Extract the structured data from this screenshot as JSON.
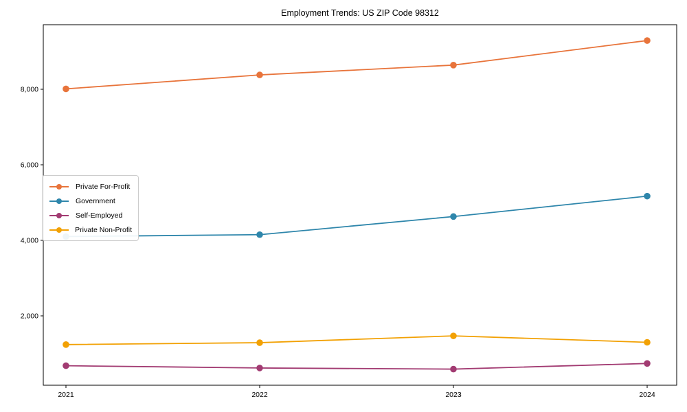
{
  "chart_data": {
    "type": "line",
    "title": "Employment Trends: US ZIP Code 98312",
    "xlabel": "",
    "ylabel": "",
    "x": [
      2021,
      2022,
      2023,
      2024
    ],
    "xticklabels": [
      "2021",
      "2022",
      "2023",
      "2024"
    ],
    "yticks": [
      2000,
      4000,
      6000,
      8000
    ],
    "yticklabels": [
      "2,000",
      "4,000",
      "6,000",
      "8,000"
    ],
    "ylim": [
      150,
      9700
    ],
    "grid": false,
    "legend_position": "center-left",
    "series": [
      {
        "name": "Private For-Profit",
        "color": "#e8743b",
        "values": [
          8010,
          8380,
          8640,
          9290
        ]
      },
      {
        "name": "Government",
        "color": "#2e86ab",
        "values": [
          4100,
          4150,
          4630,
          5170
        ]
      },
      {
        "name": "Self-Employed",
        "color": "#a23b72",
        "values": [
          680,
          620,
          590,
          740
        ]
      },
      {
        "name": "Private Non-Profit",
        "color": "#f2a104",
        "values": [
          1240,
          1290,
          1470,
          1300
        ]
      }
    ]
  }
}
